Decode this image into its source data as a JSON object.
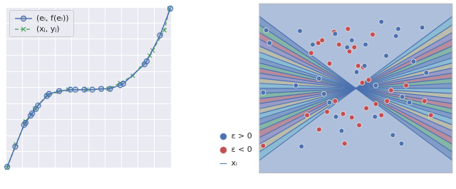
{
  "chart_data": [
    {
      "type": "line",
      "xlim": [
        0,
        10
      ],
      "ylim": [
        0,
        10
      ],
      "xticks": [
        0,
        1,
        2,
        3,
        4,
        5,
        6,
        7,
        8,
        9,
        10
      ],
      "yticks": [
        0,
        1,
        2,
        3,
        4,
        5,
        6,
        7,
        8,
        9,
        10
      ],
      "grid": true,
      "tick_labels": false,
      "legend": "upper left",
      "series": [
        {
          "name": "(eᵢ, f(eᵢ))",
          "color": "#4c72b0",
          "marker": "circle",
          "line_style": "solid",
          "x": [
            0.09,
            0.58,
            1.11,
            1.2,
            1.51,
            1.6,
            1.82,
            1.96,
            2.49,
            2.62,
            3.24,
            3.91,
            4.22,
            4.76,
            5.24,
            5.78,
            6.31,
            6.93,
            7.11,
            8.4,
            8.53,
            9.33,
            9.96
          ],
          "values": [
            0.05,
            1.31,
            2.66,
            2.79,
            3.24,
            3.38,
            3.65,
            3.87,
            4.46,
            4.59,
            4.77,
            4.86,
            4.86,
            4.86,
            4.86,
            4.91,
            4.91,
            5.14,
            5.23,
            6.44,
            6.62,
            8.24,
            9.91
          ]
        },
        {
          "name": "(xⱼ, yⱼ)",
          "color": "#55a868",
          "marker": "x",
          "line_style": "dashed",
          "x": [
            0.09,
            0.62,
            1.2,
            1.78,
            2.49,
            3.2,
            3.78,
            4.89,
            6.22,
            6.93,
            7.69,
            8.71,
            8.89,
            9.6,
            9.91
          ],
          "values": [
            0.0,
            1.44,
            2.88,
            3.69,
            4.5,
            4.73,
            4.86,
            4.86,
            4.91,
            5.27,
            5.72,
            6.98,
            7.3,
            8.56,
            9.91
          ]
        }
      ]
    },
    {
      "type": "scatter",
      "xlim": [
        -5,
        5
      ],
      "ylim": [
        -5,
        5
      ],
      "grid": false,
      "tick_labels": false,
      "legend": "left",
      "series": [
        {
          "name": "xᵢ",
          "type": "line",
          "color": "#4c72b0",
          "slopes": [
            -0.85,
            -0.75,
            -0.66,
            -0.58,
            -0.5,
            -0.43,
            -0.36,
            -0.3,
            -0.24,
            -0.18,
            -0.12,
            -0.06,
            0,
            0.06,
            0.12,
            0.18,
            0.24,
            0.3,
            0.36,
            0.43,
            0.5,
            0.58,
            0.66,
            0.75,
            0.85
          ]
        },
        {
          "name": "ε > 0",
          "type": "scatter",
          "color": "#4c72b0",
          "marker": "circle",
          "x": [
            -4.63,
            -4.46,
            -2.89,
            -2.23,
            -1.9,
            -3.1,
            -4.79,
            -0.74,
            1.32,
            2.19,
            2.07,
            0.5,
            -0.45,
            0.04,
            1.57,
            3.43,
            2.98,
            3.64,
            2.4,
            2.77,
            0.99,
            1.91,
            2.36,
            -1.03,
            -2.81,
            -1.36,
            -1.65,
            1.03,
            0.45,
            -1.07,
            -0.21
          ],
          "values": [
            3.42,
            2.67,
            3.38,
            2.58,
            0.58,
            0.17,
            -0.25,
            -2.5,
            3.92,
            3.5,
            3.08,
            2.58,
            2.42,
            0.96,
            1.92,
            3.58,
            1.58,
            0.92,
            -0.5,
            -0.83,
            -1.67,
            -2.75,
            -3.25,
            -1.67,
            -3.42,
            -0.83,
            -0.33,
            0.17,
            1.33,
            3.21,
            2.83
          ]
        },
        {
          "name": "ε < 0",
          "type": "scatter",
          "color": "#c44e52",
          "marker": "circle",
          "x": [
            -2.31,
            -1.94,
            -1.74,
            -1.12,
            -0.87,
            -0.41,
            -0.33,
            -0.08,
            0.12,
            0.37,
            0.66,
            0.33,
            1.61,
            1.32,
            2.6,
            3.55,
            3.88,
            -1.07,
            -1.49,
            -0.66,
            -0.21,
            -0.58,
            0.17,
            0.54,
            1.03,
            -2.52,
            -1.9,
            -4.79,
            0.87,
            -1.36,
            1.82
          ],
          "values": [
            2.08,
            2.67,
            2.83,
            3.33,
            2.58,
            3.5,
            2.17,
            2.42,
            1.33,
            1.25,
            0.5,
            0.33,
            -0.75,
            -1.58,
            0.17,
            -0.75,
            -1.58,
            -0.75,
            -1.38,
            -1.5,
            -1.71,
            -3.25,
            -2.17,
            -1.17,
            -0.92,
            -1.58,
            -2.42,
            -3.38,
            3.17,
            1.46,
            -0.12
          ]
        }
      ]
    }
  ]
}
